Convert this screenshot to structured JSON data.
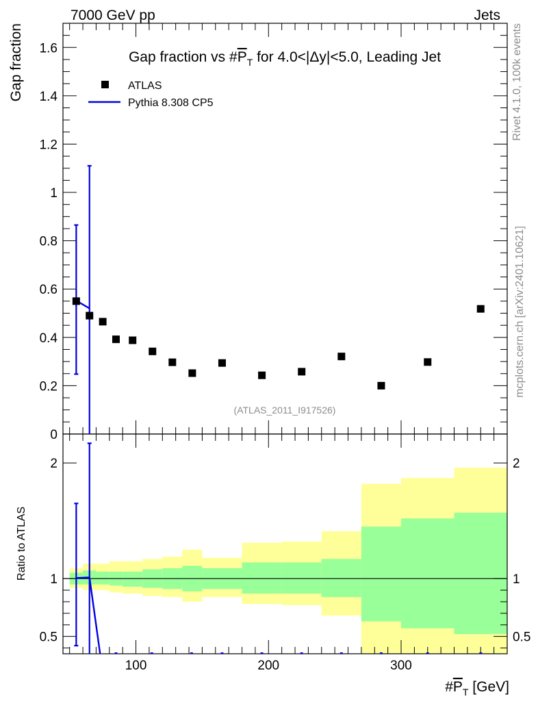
{
  "header": {
    "left": "7000 GeV pp",
    "right": "Jets"
  },
  "side_text": {
    "top": "Rivet 4.1.0,  100k events",
    "bottom": "mcplots.cern.ch [arXiv:2401.10621]"
  },
  "chart_data": {
    "type": "scatter",
    "title_parts": [
      "Gap fraction vs #",
      "P",
      "T",
      " for 4.0<|Δy|<5.0, Leading Jet"
    ],
    "ylabel": "Gap fraction",
    "xlabel_parts": [
      "#",
      "P",
      "T",
      " [GeV]"
    ],
    "analysis_id": "(ATLAS_2011_I917526)",
    "xlim": [
      45,
      380
    ],
    "ylim": [
      0,
      1.7
    ],
    "x_ticks": [
      100,
      200,
      300
    ],
    "y_ticks": [
      0,
      0.2,
      0.4,
      0.6,
      0.8,
      1,
      1.2,
      1.4,
      1.6
    ],
    "y_tick_labels": [
      "0",
      "0.2",
      "0.4",
      "0.6",
      "0.8",
      "1",
      "1.2",
      "1.4",
      "1.6"
    ],
    "legend": {
      "position": "top-left",
      "entries": [
        "ATLAS",
        "Pythia 8.308 CP5"
      ]
    },
    "colors": {
      "data": "#000000",
      "mc": "#0000e0",
      "band_inner": "#99ff99",
      "band_outer": "#ffff99"
    },
    "series": [
      {
        "name": "ATLAS",
        "x": [
          55,
          65,
          75,
          85,
          97.5,
          112.5,
          127.5,
          142.5,
          165,
          195,
          225,
          255,
          285,
          320,
          360
        ],
        "y": [
          0.55,
          0.49,
          0.465,
          0.392,
          0.388,
          0.342,
          0.297,
          0.252,
          0.294,
          0.243,
          0.258,
          0.321,
          0.2,
          0.298,
          0.518
        ]
      },
      {
        "name": "Pythia 8.308 CP5",
        "x": [
          55,
          65
        ],
        "y": [
          0.552,
          0.52
        ],
        "yerr_low": [
          0.248,
          0
        ],
        "yerr_high": [
          0.865,
          1.11
        ]
      }
    ],
    "ratio": {
      "ylabel": "Ratio to ATLAS",
      "ylim": [
        0.35,
        2.25
      ],
      "y_ticks": [
        0.5,
        1,
        2
      ],
      "y_tick_labels": [
        "0.5",
        "1",
        "2"
      ],
      "mc_x": [
        55,
        65,
        73
      ],
      "mc_y": [
        1.005,
        1.01,
        0.35
      ],
      "mc_err_low": [
        0.42,
        0.35
      ],
      "mc_err_high": [
        1.65,
        2.17
      ],
      "bins": [
        {
          "lo": 50,
          "hi": 60,
          "inner": [
            0.95,
            1.05
          ],
          "outer": [
            0.92,
            1.09
          ]
        },
        {
          "lo": 60,
          "hi": 70,
          "inner": [
            0.95,
            1.07
          ],
          "outer": [
            0.9,
            1.13
          ]
        },
        {
          "lo": 70,
          "hi": 80,
          "inner": [
            0.95,
            1.06
          ],
          "outer": [
            0.9,
            1.13
          ]
        },
        {
          "lo": 80,
          "hi": 90,
          "inner": [
            0.94,
            1.06
          ],
          "outer": [
            0.88,
            1.15
          ]
        },
        {
          "lo": 90,
          "hi": 105,
          "inner": [
            0.93,
            1.06
          ],
          "outer": [
            0.87,
            1.15
          ]
        },
        {
          "lo": 105,
          "hi": 120,
          "inner": [
            0.92,
            1.08
          ],
          "outer": [
            0.85,
            1.17
          ]
        },
        {
          "lo": 120,
          "hi": 135,
          "inner": [
            0.91,
            1.09
          ],
          "outer": [
            0.84,
            1.19
          ]
        },
        {
          "lo": 135,
          "hi": 150,
          "inner": [
            0.89,
            1.11
          ],
          "outer": [
            0.8,
            1.25
          ]
        },
        {
          "lo": 150,
          "hi": 180,
          "inner": [
            0.91,
            1.09
          ],
          "outer": [
            0.84,
            1.18
          ]
        },
        {
          "lo": 180,
          "hi": 210,
          "inner": [
            0.87,
            1.14
          ],
          "outer": [
            0.78,
            1.31
          ]
        },
        {
          "lo": 210,
          "hi": 240,
          "inner": [
            0.87,
            1.14
          ],
          "outer": [
            0.77,
            1.32
          ]
        },
        {
          "lo": 240,
          "hi": 270,
          "inner": [
            0.84,
            1.17
          ],
          "outer": [
            0.68,
            1.41
          ]
        },
        {
          "lo": 270,
          "hi": 300,
          "inner": [
            0.63,
            1.45
          ],
          "outer": [
            0.35,
            1.82
          ]
        },
        {
          "lo": 300,
          "hi": 340,
          "inner": [
            0.57,
            1.52
          ],
          "outer": [
            0.35,
            1.87
          ]
        },
        {
          "lo": 340,
          "hi": 380,
          "inner": [
            0.52,
            1.57
          ],
          "outer": [
            0.35,
            1.96
          ]
        }
      ]
    }
  }
}
